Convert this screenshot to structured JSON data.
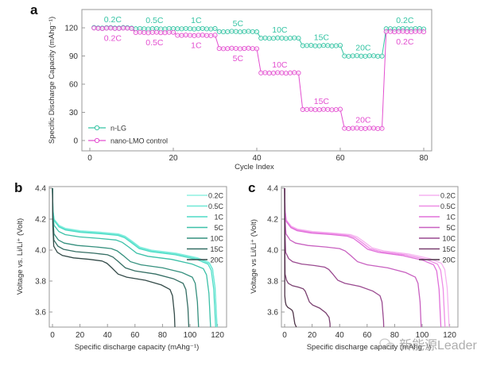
{
  "chart_data": [
    {
      "panel": "a",
      "type": "scatter-line",
      "xlabel": "Cycle Index",
      "ylabel": "Specific Discharge Capacity (mAhg⁻¹)",
      "xlim": [
        0,
        80
      ],
      "ylim": [
        0,
        130
      ],
      "xticks": [
        "0",
        "20",
        "40",
        "60",
        "80"
      ],
      "yticks": [
        "0",
        "30",
        "60",
        "90",
        "120"
      ],
      "legend_position": "bottom-left",
      "cycles_per_rate": 10,
      "rates": [
        "0.2C",
        "0.5C",
        "1C",
        "5C",
        "10C",
        "15C",
        "20C",
        "0.2C"
      ],
      "series": [
        {
          "name": "n-LG",
          "color": "#35c4a4",
          "values": [
            120,
            119,
            119,
            116,
            109,
            101,
            90,
            119
          ]
        },
        {
          "name": "nano-LMO control",
          "color": "#e34fd0",
          "values": [
            119.5,
            115,
            112,
            98,
            72,
            33,
            13,
            116
          ]
        }
      ]
    },
    {
      "panel": "b",
      "type": "line",
      "xlabel": "Specific discharge capacity (mAhg⁻¹)",
      "ylabel": "Voltage vs. Li/Li⁺ (Volt)",
      "xlim": [
        0,
        125
      ],
      "ylim": [
        3.5,
        4.4
      ],
      "xticks": [
        "0",
        "20",
        "40",
        "60",
        "80",
        "100",
        "120"
      ],
      "yticks": [
        "3.6",
        "3.8",
        "4.0",
        "4.2",
        "4.4"
      ],
      "legend_position": "top-right",
      "series": [
        {
          "name": "0.2C",
          "color": "#8ff0e2",
          "end_capacity": 120,
          "plateau_voltage": 4.115
        },
        {
          "name": "0.5C",
          "color": "#6ee8d6",
          "end_capacity": 120,
          "plateau_voltage": 4.11
        },
        {
          "name": "1C",
          "color": "#4fdcc6",
          "end_capacity": 119,
          "plateau_voltage": 4.105
        },
        {
          "name": "5C",
          "color": "#3cc0a8",
          "end_capacity": 115.5,
          "plateau_voltage": 4.075
        },
        {
          "name": "10C",
          "color": "#35907e",
          "end_capacity": 107,
          "plateau_voltage": 4.02
        },
        {
          "name": "15C",
          "color": "#356e64",
          "end_capacity": 100,
          "plateau_voltage": 3.98
        },
        {
          "name": "20C",
          "color": "#334a48",
          "end_capacity": 90,
          "plateau_voltage": 3.94
        }
      ]
    },
    {
      "panel": "c",
      "type": "line",
      "xlabel": "Specific discharge capacity (mAhg⁻¹)",
      "ylabel": "Voltage vs Li/Li⁺ (Volt)",
      "xlim": [
        0,
        125
      ],
      "ylim": [
        3.5,
        4.4
      ],
      "xticks": [
        "0",
        "20",
        "40",
        "60",
        "80",
        "100",
        "120"
      ],
      "yticks": [
        "3.6",
        "3.8",
        "4.0",
        "4.2",
        "4.4"
      ],
      "legend_position": "top-right",
      "series": [
        {
          "name": "0.2C",
          "color": "#f6b2f0",
          "end_capacity": 120,
          "plateau_voltage": 4.11
        },
        {
          "name": "0.5C",
          "color": "#ee8ee6",
          "end_capacity": 117,
          "plateau_voltage": 4.105
        },
        {
          "name": "1C",
          "color": "#e070da",
          "end_capacity": 114,
          "plateau_voltage": 4.1
        },
        {
          "name": "5C",
          "color": "#c860c0",
          "end_capacity": 100,
          "plateau_voltage": 4.02
        },
        {
          "name": "10C",
          "color": "#9a4a90",
          "end_capacity": 73,
          "plateau_voltage": 3.9
        },
        {
          "name": "15C",
          "color": "#7a4070",
          "end_capacity": 34,
          "plateau_voltage": 3.76
        },
        {
          "name": "20C",
          "color": "#4e3448",
          "end_capacity": 14,
          "plateau_voltage": 3.62
        }
      ]
    }
  ],
  "panel_labels": {
    "a": "a",
    "b": "b",
    "c": "c"
  },
  "watermark": "新能源Leader"
}
